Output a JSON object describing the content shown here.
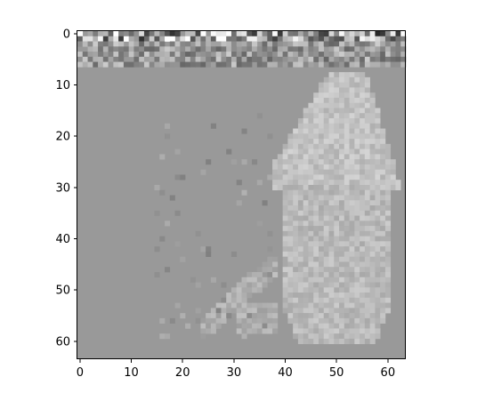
{
  "chart_data": {
    "type": "heatmap",
    "title": "",
    "xlabel": "",
    "ylabel": "",
    "colormap": "gray",
    "grid": false,
    "rows": 64,
    "cols": 64,
    "xlim": [
      -0.5,
      63.5
    ],
    "ylim": [
      63.5,
      -0.5
    ],
    "x_ticks": [
      0,
      10,
      20,
      30,
      40,
      50,
      60
    ],
    "y_ticks": [
      0,
      10,
      20,
      30,
      40,
      50,
      60
    ],
    "x_tick_labels": [
      "0",
      "10",
      "20",
      "30",
      "40",
      "50",
      "60"
    ],
    "y_tick_labels": [
      "0",
      "10",
      "20",
      "30",
      "40",
      "50",
      "60"
    ],
    "background_value": 0.6,
    "figure_regions": [
      {
        "name": "upper-torso-and-head",
        "x": [
          38,
          62
        ],
        "y": [
          8,
          30
        ],
        "value": 0.76
      },
      {
        "name": "lower-body-and-dress",
        "x": [
          38,
          61
        ],
        "y": [
          30,
          60
        ],
        "value": 0.73
      },
      {
        "name": "left-trailing-shape",
        "x": [
          24,
          38
        ],
        "y": [
          44,
          58
        ],
        "value": 0.69
      }
    ],
    "noise_rows": [
      0,
      1,
      2,
      3,
      4,
      5,
      6
    ]
  }
}
